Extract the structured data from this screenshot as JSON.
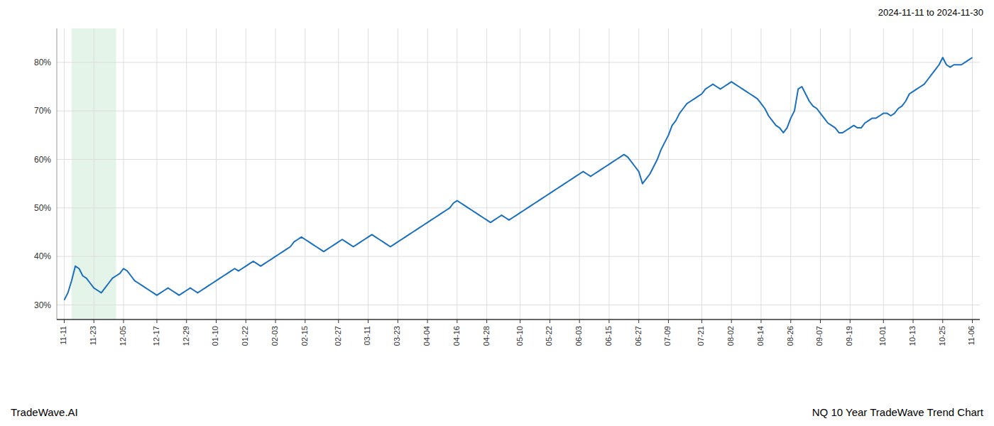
{
  "chart_data": {
    "type": "line",
    "title": "2024-11-11 to 2024-11-30",
    "annotations": [
      "TradeWave.AI",
      "NQ 10 Year TradeWave Trend Chart"
    ],
    "color": "#1a6fbe",
    "grid": true,
    "highlight": {
      "start": 2,
      "end": 14,
      "color": "#d4edda"
    },
    "ylim": [
      27,
      87
    ],
    "yticks": [
      {
        "value": 30,
        "label": "30%"
      },
      {
        "value": 40,
        "label": "40%"
      },
      {
        "value": 50,
        "label": "50%"
      },
      {
        "value": 60,
        "label": "60%"
      },
      {
        "value": 70,
        "label": "70%"
      },
      {
        "value": 80,
        "label": "80%"
      }
    ],
    "categories": [
      "11-11",
      null,
      null,
      null,
      null,
      null,
      null,
      null,
      "11-23",
      null,
      null,
      null,
      null,
      null,
      null,
      null,
      "12-05",
      null,
      null,
      null,
      null,
      null,
      null,
      null,
      null,
      "12-17",
      null,
      null,
      null,
      null,
      null,
      null,
      null,
      "12-29",
      null,
      null,
      null,
      null,
      null,
      null,
      null,
      "01-10",
      null,
      null,
      null,
      null,
      null,
      null,
      null,
      "01-22",
      null,
      null,
      null,
      null,
      null,
      null,
      null,
      "02-03",
      null,
      null,
      null,
      null,
      null,
      null,
      null,
      "02-15",
      null,
      null,
      null,
      null,
      null,
      null,
      null,
      null,
      "02-27",
      null,
      null,
      null,
      null,
      null,
      null,
      null,
      "03-11",
      null,
      null,
      null,
      null,
      null,
      null,
      null,
      "03-23",
      null,
      null,
      null,
      null,
      null,
      null,
      null,
      "04-04",
      null,
      null,
      null,
      null,
      null,
      null,
      null,
      "04-16",
      null,
      null,
      null,
      null,
      null,
      null,
      null,
      "04-28",
      null,
      null,
      null,
      null,
      null,
      null,
      null,
      null,
      "05-10",
      null,
      null,
      null,
      null,
      null,
      null,
      null,
      "05-22",
      null,
      null,
      null,
      null,
      null,
      null,
      null,
      "06-03",
      null,
      null,
      null,
      null,
      null,
      null,
      null,
      "06-15",
      null,
      null,
      null,
      null,
      null,
      null,
      null,
      "06-27",
      null,
      null,
      null,
      null,
      null,
      null,
      null,
      "07-09",
      null,
      null,
      null,
      null,
      null,
      null,
      null,
      null,
      "07-21",
      null,
      null,
      null,
      null,
      null,
      null,
      null,
      "08-02",
      null,
      null,
      null,
      null,
      null,
      null,
      null,
      "08-14",
      null,
      null,
      null,
      null,
      null,
      null,
      null,
      "08-26",
      null,
      null,
      null,
      null,
      null,
      null,
      null,
      "09-07",
      null,
      null,
      null,
      null,
      null,
      null,
      null,
      "09-19",
      null,
      null,
      null,
      null,
      null,
      null,
      null,
      null,
      "10-01",
      null,
      null,
      null,
      null,
      null,
      null,
      null,
      "10-13",
      null,
      null,
      null,
      null,
      null,
      null,
      null,
      "10-25",
      null,
      null,
      null,
      null,
      null,
      null,
      null,
      "11-06"
    ],
    "values": [
      31.0,
      32.5,
      35.0,
      38.0,
      37.5,
      36.0,
      35.5,
      34.5,
      33.5,
      33.0,
      32.5,
      33.5,
      34.5,
      35.5,
      36.0,
      36.5,
      37.5,
      37.0,
      36.0,
      35.0,
      34.5,
      34.0,
      33.5,
      33.0,
      32.5,
      32.0,
      32.5,
      33.0,
      33.5,
      33.0,
      32.5,
      32.0,
      32.5,
      33.0,
      33.5,
      33.0,
      32.5,
      33.0,
      33.5,
      34.0,
      34.5,
      35.0,
      35.5,
      36.0,
      36.5,
      37.0,
      37.5,
      37.0,
      37.5,
      38.0,
      38.5,
      39.0,
      38.5,
      38.0,
      38.5,
      39.0,
      39.5,
      40.0,
      40.5,
      41.0,
      41.5,
      42.0,
      43.0,
      43.5,
      44.0,
      43.5,
      43.0,
      42.5,
      42.0,
      41.5,
      41.0,
      41.5,
      42.0,
      42.5,
      43.0,
      43.5,
      43.0,
      42.5,
      42.0,
      42.5,
      43.0,
      43.5,
      44.0,
      44.5,
      44.0,
      43.5,
      43.0,
      42.5,
      42.0,
      42.5,
      43.0,
      43.5,
      44.0,
      44.5,
      45.0,
      45.5,
      46.0,
      46.5,
      47.0,
      47.5,
      48.0,
      48.5,
      49.0,
      49.5,
      50.0,
      51.0,
      51.5,
      51.0,
      50.5,
      50.0,
      49.5,
      49.0,
      48.5,
      48.0,
      47.5,
      47.0,
      47.5,
      48.0,
      48.5,
      48.0,
      47.5,
      48.0,
      48.5,
      49.0,
      49.5,
      50.0,
      50.5,
      51.0,
      51.5,
      52.0,
      52.5,
      53.0,
      53.5,
      54.0,
      54.5,
      55.0,
      55.5,
      56.0,
      56.5,
      57.0,
      57.5,
      57.0,
      56.5,
      57.0,
      57.5,
      58.0,
      58.5,
      59.0,
      59.5,
      60.0,
      60.5,
      61.0,
      60.5,
      59.5,
      58.5,
      57.5,
      55.0,
      56.0,
      57.0,
      58.5,
      60.0,
      62.0,
      63.5,
      65.0,
      67.0,
      68.0,
      69.5,
      70.5,
      71.5,
      72.0,
      72.5,
      73.0,
      73.5,
      74.5,
      75.0,
      75.5,
      75.0,
      74.5,
      75.0,
      75.5,
      76.0,
      75.5,
      75.0,
      74.5,
      74.0,
      73.5,
      73.0,
      72.5,
      71.5,
      70.5,
      69.0,
      68.0,
      67.0,
      66.5,
      65.5,
      66.5,
      68.5,
      70.0,
      74.5,
      75.0,
      73.5,
      72.0,
      71.0,
      70.5,
      69.5,
      68.5,
      67.5,
      67.0,
      66.5,
      65.5,
      65.5,
      66.0,
      66.5,
      67.0,
      66.5,
      66.5,
      67.5,
      68.0,
      68.5,
      68.5,
      69.0,
      69.5,
      69.5,
      69.0,
      69.5,
      70.5,
      71.0,
      72.0,
      73.5,
      74.0,
      74.5,
      75.0,
      75.5,
      76.5,
      77.5,
      78.5,
      79.5,
      81.0,
      79.5,
      79.0,
      79.5,
      79.5,
      79.5,
      80.0,
      80.5,
      81.0
    ]
  }
}
